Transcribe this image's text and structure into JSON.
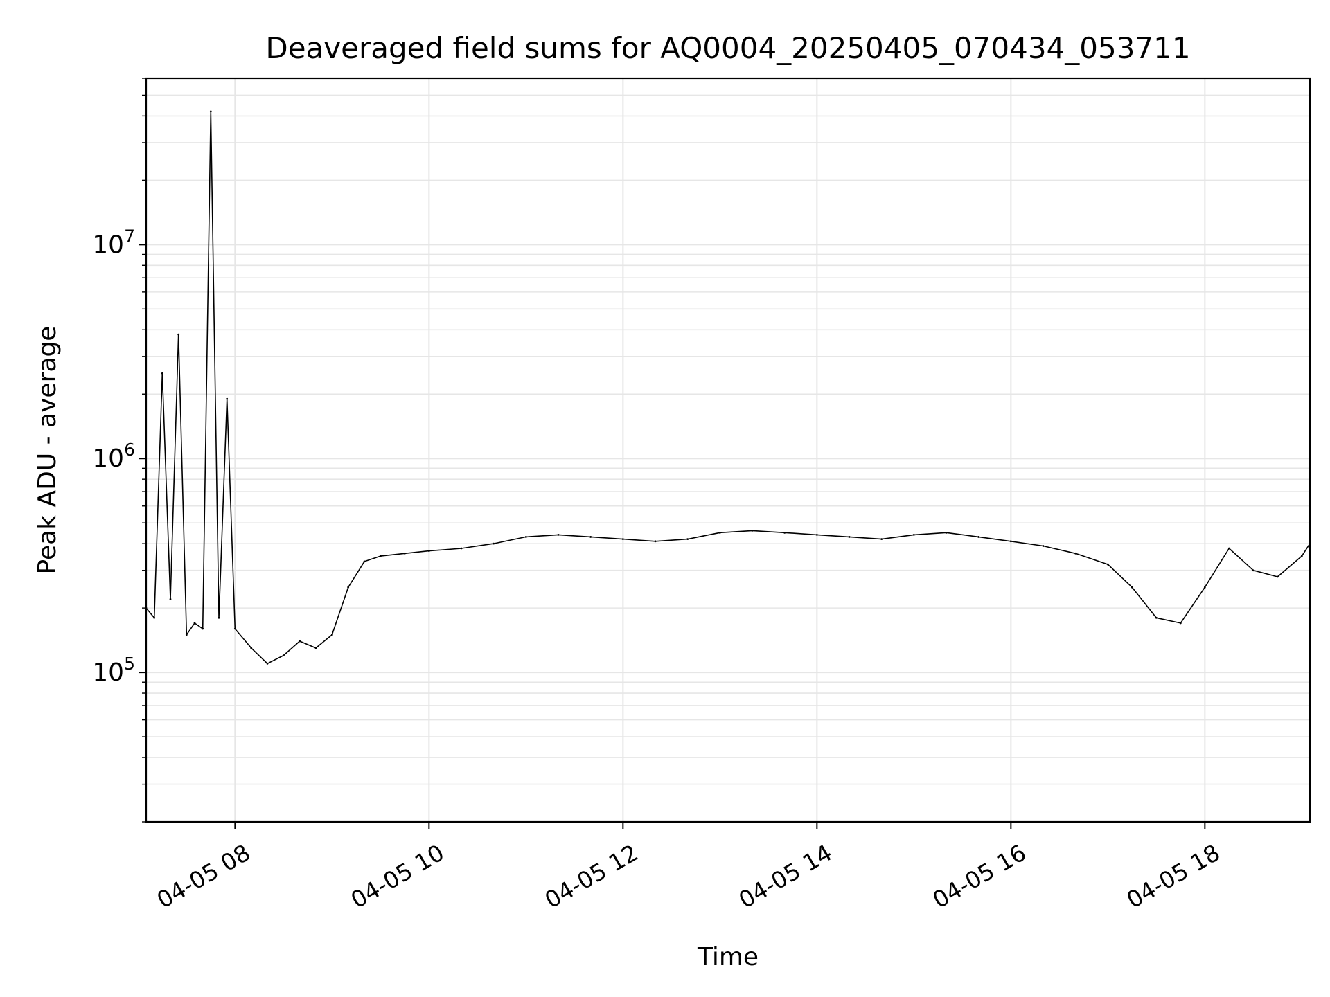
{
  "chart_data": {
    "type": "line",
    "title": "Deaveraged field sums for AQ0004_20250405_070434_053711",
    "xlabel": "Time",
    "ylabel": "Peak ADU - average",
    "x_axis_type": "time",
    "xlim": [
      "2025-04-05 07:05",
      "2025-04-05 19:05"
    ],
    "ylim": [
      20000,
      60000000
    ],
    "y_scale": "log",
    "grid": true,
    "legend": "none",
    "x_ticks": [
      {
        "value": "2025-04-05 08:00",
        "label": "04-05 08"
      },
      {
        "value": "2025-04-05 10:00",
        "label": "04-05 10"
      },
      {
        "value": "2025-04-05 12:00",
        "label": "04-05 12"
      },
      {
        "value": "2025-04-05 14:00",
        "label": "04-05 14"
      },
      {
        "value": "2025-04-05 16:00",
        "label": "04-05 16"
      },
      {
        "value": "2025-04-05 18:00",
        "label": "04-05 18"
      }
    ],
    "y_ticks": [
      {
        "value": 100000,
        "base": "10",
        "exp": "5"
      },
      {
        "value": 1000000,
        "base": "10",
        "exp": "6"
      },
      {
        "value": 10000000,
        "base": "10",
        "exp": "7"
      }
    ],
    "series": [
      {
        "color": "#000000",
        "x": [
          "2025-04-05 07:05",
          "2025-04-05 07:10",
          "2025-04-05 07:15",
          "2025-04-05 07:20",
          "2025-04-05 07:25",
          "2025-04-05 07:30",
          "2025-04-05 07:35",
          "2025-04-05 07:40",
          "2025-04-05 07:45",
          "2025-04-05 07:50",
          "2025-04-05 07:55",
          "2025-04-05 08:00",
          "2025-04-05 08:10",
          "2025-04-05 08:20",
          "2025-04-05 08:30",
          "2025-04-05 08:40",
          "2025-04-05 08:50",
          "2025-04-05 09:00",
          "2025-04-05 09:10",
          "2025-04-05 09:20",
          "2025-04-05 09:30",
          "2025-04-05 09:45",
          "2025-04-05 10:00",
          "2025-04-05 10:20",
          "2025-04-05 10:40",
          "2025-04-05 11:00",
          "2025-04-05 11:20",
          "2025-04-05 11:40",
          "2025-04-05 12:00",
          "2025-04-05 12:20",
          "2025-04-05 12:40",
          "2025-04-05 13:00",
          "2025-04-05 13:20",
          "2025-04-05 13:40",
          "2025-04-05 14:00",
          "2025-04-05 14:20",
          "2025-04-05 14:40",
          "2025-04-05 15:00",
          "2025-04-05 15:20",
          "2025-04-05 15:40",
          "2025-04-05 16:00",
          "2025-04-05 16:20",
          "2025-04-05 16:40",
          "2025-04-05 17:00",
          "2025-04-05 17:15",
          "2025-04-05 17:30",
          "2025-04-05 17:45",
          "2025-04-05 18:00",
          "2025-04-05 18:15",
          "2025-04-05 18:30",
          "2025-04-05 18:45",
          "2025-04-05 19:00",
          "2025-04-05 19:05"
        ],
        "y": [
          200000,
          180000,
          2500000,
          220000,
          3800000,
          150000,
          170000,
          160000,
          42000000,
          180000,
          1900000,
          160000,
          130000,
          110000,
          120000,
          140000,
          130000,
          150000,
          250000,
          330000,
          350000,
          360000,
          370000,
          380000,
          400000,
          430000,
          440000,
          430000,
          420000,
          410000,
          420000,
          450000,
          460000,
          450000,
          440000,
          430000,
          420000,
          440000,
          450000,
          430000,
          410000,
          390000,
          360000,
          320000,
          250000,
          180000,
          170000,
          250000,
          380000,
          300000,
          280000,
          350000,
          400000
        ]
      }
    ]
  }
}
